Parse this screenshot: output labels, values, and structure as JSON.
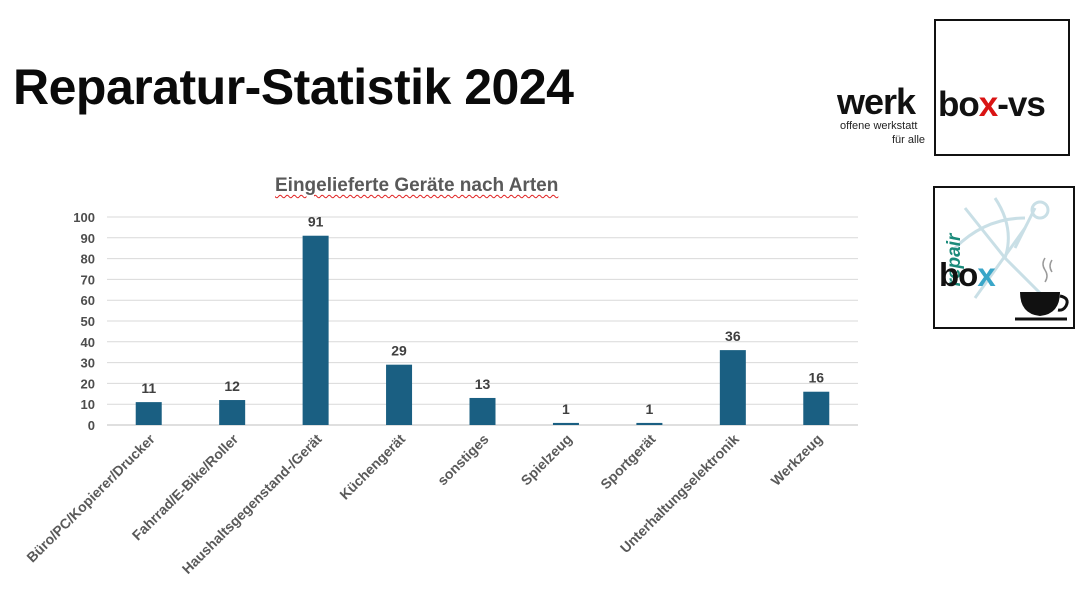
{
  "slide": {
    "title": "Reparatur-Statistik 2024"
  },
  "logos": {
    "werkbox": {
      "word_left": "werk",
      "word_box": "bo",
      "word_x": "x",
      "word_suffix": "-vs",
      "subline1": "offene werkstatt",
      "subline2": "für alle"
    },
    "repairbox": {
      "word_repair": "repair",
      "word_box": "bo",
      "word_x": "x"
    }
  },
  "colors": {
    "bar": "#1a5f82",
    "grid": "#d9d9d9",
    "title_underline": "#e02020",
    "logo_x_red": "#d91414",
    "logo_x_blue": "#3aa6c8",
    "repair_green": "#1a8a7a"
  },
  "chart_data": {
    "type": "bar",
    "title": "Eingelieferte Geräte nach Arten",
    "categories": [
      "Büro/PC/Kopierer/Drucker",
      "Fahrrad/E-Bike/Roller",
      "Haushaltsgegenstand-/Gerät",
      "Küchengerät",
      "sonstiges",
      "Spielzeug",
      "Sportgerät",
      "Unterhaltungselektronik",
      "Werkzeug"
    ],
    "values": [
      11,
      12,
      91,
      29,
      13,
      1,
      1,
      36,
      16
    ],
    "ylim": [
      0,
      100
    ],
    "yticks": [
      0,
      10,
      20,
      30,
      40,
      50,
      60,
      70,
      80,
      90,
      100
    ],
    "grid": true,
    "data_labels": true,
    "xlabel": "",
    "ylabel": ""
  }
}
